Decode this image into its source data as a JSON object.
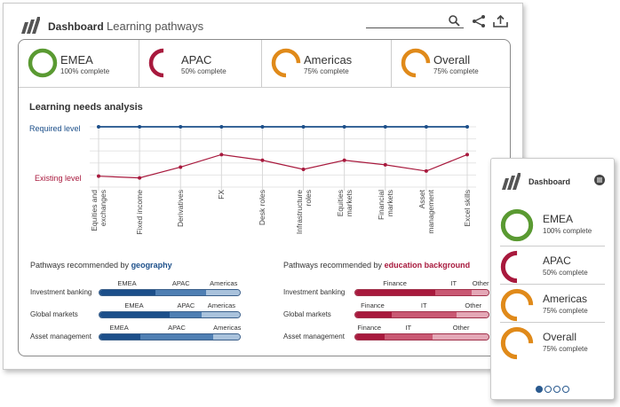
{
  "header": {
    "app_title": "Dashboard",
    "page_title": "Learning pathways",
    "search_placeholder": ""
  },
  "colors": {
    "green": "#5a9a32",
    "crimson": "#a8193d",
    "orange": "#e08a1a",
    "blue": "#1c4f8a",
    "mid_blue": "#4f7fb3",
    "light_blue": "#a9c2dc",
    "rose": "#c95873",
    "pink": "#e4a7b6"
  },
  "kpis": [
    {
      "name": "EMEA",
      "pct_label": "100% complete",
      "progress": 1.0,
      "color": "#5a9a32"
    },
    {
      "name": "APAC",
      "pct_label": "50% complete",
      "progress": 0.5,
      "color": "#a8193d"
    },
    {
      "name": "Americas",
      "pct_label": "75% complete",
      "progress": 0.75,
      "color": "#e08a1a"
    },
    {
      "name": "Overall",
      "pct_label": "75% complete",
      "progress": 0.75,
      "color": "#e08a1a"
    }
  ],
  "needs": {
    "title": "Learning needs analysis",
    "required_label": "Required level",
    "existing_label": "Existing level",
    "chart_data": {
      "type": "line",
      "categories": [
        "Equities and exchanges",
        "Fixed income",
        "Derivatives",
        "FX",
        "Desk roles",
        "Infrastructure roles",
        "Equities markets",
        "Financial markets",
        "Asset management",
        "Excel skills"
      ],
      "series": [
        {
          "name": "Required level",
          "values": [
            10,
            10,
            10,
            10,
            10,
            10,
            10,
            10,
            10,
            10
          ]
        },
        {
          "name": "Existing level",
          "values": [
            1.3,
            1.0,
            2.9,
            5.1,
            4.1,
            2.5,
            4.1,
            3.3,
            2.2,
            5.1
          ]
        }
      ],
      "ylim": [
        0,
        10
      ],
      "grid": true
    }
  },
  "geo": {
    "title_prefix": "Pathways recommended by ",
    "title_key": "geography",
    "segments": [
      "EMEA",
      "APAC",
      "Americas"
    ],
    "rows": [
      {
        "label": "Investment banking",
        "values": [
          0.4,
          0.36,
          0.24
        ]
      },
      {
        "label": "Global markets",
        "values": [
          0.5,
          0.23,
          0.27
        ]
      },
      {
        "label": "Asset management",
        "values": [
          0.29,
          0.52,
          0.19
        ]
      }
    ]
  },
  "edu": {
    "title_prefix": "Pathways recommended by ",
    "title_key": "education background",
    "segments": [
      "Finance",
      "IT",
      "Other"
    ],
    "rows": [
      {
        "label": "Investment banking",
        "values": [
          0.6,
          0.27,
          0.13
        ]
      },
      {
        "label": "Global markets",
        "values": [
          0.27,
          0.49,
          0.24
        ]
      },
      {
        "label": "Asset management",
        "values": [
          0.22,
          0.36,
          0.42
        ]
      }
    ]
  },
  "mobile": {
    "title": "Dashboard",
    "page": 1,
    "pages": 4
  }
}
